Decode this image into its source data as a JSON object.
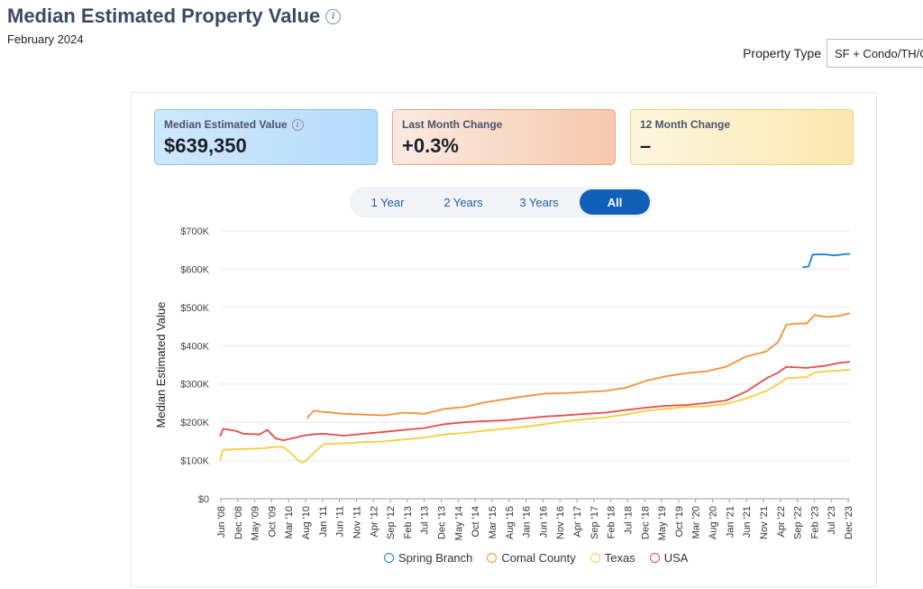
{
  "header": {
    "title": "Median Estimated Property Value",
    "subtitle": "February 2024"
  },
  "filters": {
    "property_type_label": "Property Type",
    "property_type_value": "SF + Condo/TH/Coop"
  },
  "stats": [
    {
      "label": "Median Estimated Value",
      "value": "$639,350"
    },
    {
      "label": "Last Month Change",
      "value": "+0.3%"
    },
    {
      "label": "12 Month Change",
      "value": "–"
    }
  ],
  "tabs": [
    {
      "label": "1 Year"
    },
    {
      "label": "2 Years"
    },
    {
      "label": "3 Years"
    },
    {
      "label": "All",
      "active": true
    }
  ],
  "colors": {
    "spring_branch": "#1f7fd0",
    "comal_county": "#f0933a",
    "texas": "#f6cf3b",
    "usa": "#e84a4a",
    "grid": "#e6e8ec"
  },
  "chart_data": {
    "type": "line",
    "ylabel": "Median Estimated Value",
    "xlabel": "",
    "ylim": [
      0,
      700000
    ],
    "yticks": [
      0,
      100000,
      200000,
      300000,
      400000,
      500000,
      600000,
      700000
    ],
    "ytick_labels": [
      "$0",
      "$100K",
      "$200K",
      "$300K",
      "$400K",
      "$500K",
      "$600K",
      "$700K"
    ],
    "x_range": [
      2008.42,
      2024.08
    ],
    "xtick_labels": [
      "Jun '08",
      "Dec '08",
      "May '09",
      "Oct '09",
      "Mar '10",
      "Aug '10",
      "Jan '11",
      "Jun '11",
      "Nov '11",
      "Apr '12",
      "Sep '12",
      "Feb '13",
      "Jul '13",
      "Dec '13",
      "May '14",
      "Oct '14",
      "Mar '15",
      "Aug '15",
      "Jan '16",
      "Jun '16",
      "Nov '16",
      "Apr '17",
      "Sep '17",
      "Feb '18",
      "Jul '18",
      "Dec '18",
      "May '19",
      "Oct '19",
      "Mar '20",
      "Aug '20",
      "Jan '21",
      "Jun '21",
      "Nov '21",
      "Apr '22",
      "Sep '22",
      "Feb '23",
      "Jul '23",
      "Dec '23"
    ],
    "series": [
      {
        "name": "Spring Branch",
        "x": [
          2022.9,
          2023.05,
          2023.15,
          2023.4,
          2023.7,
          2024.0,
          2024.08
        ],
        "values": [
          605000,
          607000,
          638000,
          639000,
          636000,
          640000,
          639350
        ]
      },
      {
        "name": "Comal County",
        "x": [
          2010.58,
          2010.75,
          2011.0,
          2011.5,
          2012.0,
          2012.5,
          2013.0,
          2013.5,
          2014.0,
          2014.5,
          2015.0,
          2015.5,
          2016.0,
          2016.5,
          2017.0,
          2017.5,
          2018.0,
          2018.5,
          2019.0,
          2019.5,
          2020.0,
          2020.5,
          2021.0,
          2021.5,
          2022.0,
          2022.3,
          2022.5,
          2022.8,
          2023.0,
          2023.2,
          2023.5,
          2023.8,
          2024.08
        ],
        "values": [
          210000,
          230000,
          227000,
          222000,
          220000,
          218000,
          225000,
          222000,
          235000,
          240000,
          252000,
          260000,
          268000,
          275000,
          276000,
          279000,
          282000,
          290000,
          308000,
          320000,
          328000,
          333000,
          345000,
          372000,
          385000,
          410000,
          455000,
          458000,
          458000,
          480000,
          475000,
          478000,
          485000
        ]
      },
      {
        "name": "Texas",
        "x": [
          2008.42,
          2008.5,
          2009.0,
          2009.5,
          2009.8,
          2010.0,
          2010.2,
          2010.4,
          2010.5,
          2011.0,
          2011.5,
          2012.0,
          2012.5,
          2013.0,
          2013.5,
          2014.0,
          2014.5,
          2015.0,
          2015.5,
          2016.0,
          2016.5,
          2017.0,
          2017.5,
          2018.0,
          2018.5,
          2019.0,
          2019.5,
          2020.0,
          2020.5,
          2021.0,
          2021.5,
          2022.0,
          2022.3,
          2022.5,
          2023.0,
          2023.2,
          2023.5,
          2023.8,
          2024.08
        ],
        "values": [
          100000,
          128000,
          130000,
          132000,
          136000,
          135000,
          118000,
          97000,
          95000,
          143000,
          145000,
          148000,
          150000,
          155000,
          160000,
          168000,
          172000,
          178000,
          183000,
          188000,
          195000,
          203000,
          208000,
          213000,
          220000,
          230000,
          235000,
          240000,
          242000,
          248000,
          262000,
          282000,
          300000,
          315000,
          318000,
          330000,
          333000,
          335000,
          338000
        ]
      },
      {
        "name": "USA",
        "x": [
          2008.42,
          2008.5,
          2008.8,
          2009.0,
          2009.4,
          2009.6,
          2009.8,
          2010.0,
          2010.3,
          2010.5,
          2010.7,
          2011.0,
          2011.5,
          2012.0,
          2012.5,
          2013.0,
          2013.5,
          2014.0,
          2014.5,
          2015.0,
          2015.5,
          2016.0,
          2016.5,
          2017.0,
          2017.5,
          2018.0,
          2018.5,
          2019.0,
          2019.5,
          2020.0,
          2020.5,
          2021.0,
          2021.5,
          2022.0,
          2022.3,
          2022.5,
          2023.0,
          2023.5,
          2023.8,
          2024.08
        ],
        "values": [
          163000,
          183000,
          178000,
          170000,
          168000,
          180000,
          158000,
          153000,
          160000,
          165000,
          168000,
          170000,
          165000,
          170000,
          175000,
          180000,
          185000,
          195000,
          200000,
          203000,
          205000,
          210000,
          215000,
          218000,
          222000,
          225000,
          232000,
          238000,
          243000,
          245000,
          250000,
          257000,
          280000,
          315000,
          330000,
          345000,
          342000,
          348000,
          355000,
          358000
        ]
      }
    ]
  }
}
